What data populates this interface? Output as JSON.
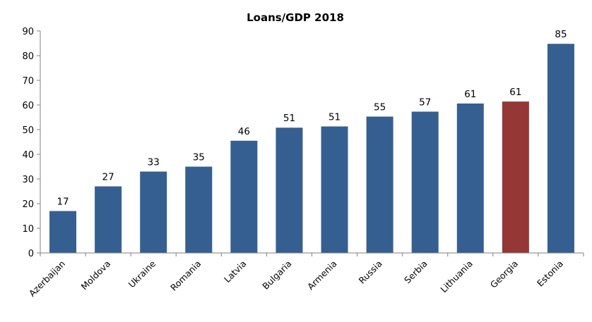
{
  "chart_data": {
    "type": "bar",
    "title": "Loans/GDP 2018",
    "xlabel": "",
    "ylabel": "",
    "ylim": [
      0,
      90
    ],
    "yticks": [
      0,
      10,
      20,
      30,
      40,
      50,
      60,
      70,
      80,
      90
    ],
    "grid": false,
    "legend": "none",
    "categories": [
      "Azerbaijan",
      "Moldova",
      "Ukraine",
      "Romania",
      "Latvia",
      "Bulgaria",
      "Armenia",
      "Russia",
      "Serbia",
      "Lithuania",
      "Georgia",
      "Estonia"
    ],
    "values": [
      17,
      27,
      33,
      35,
      45.5,
      50.8,
      51.3,
      55.3,
      57.3,
      60.6,
      61.4,
      84.8
    ],
    "data_labels": [
      "17",
      "27",
      "33",
      "35",
      "46",
      "51",
      "51",
      "55",
      "57",
      "61",
      "61",
      "85"
    ],
    "colors": {
      "default": "#365f91",
      "highlight": "#953735",
      "highlight_category": "Georgia"
    }
  }
}
